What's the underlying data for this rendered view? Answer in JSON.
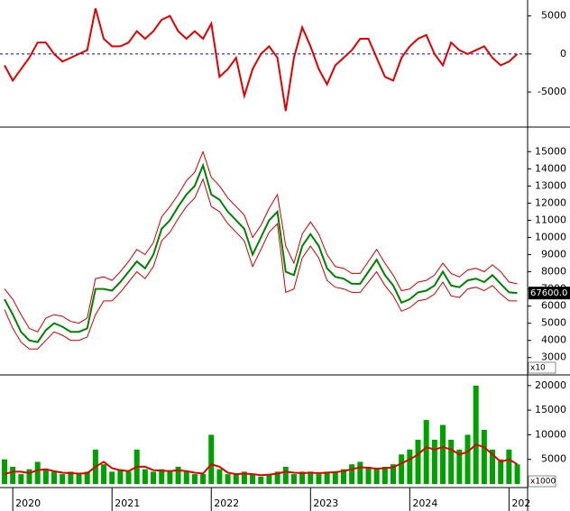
{
  "chart_data": [
    {
      "type": "line",
      "ylim": [
        -9500,
        7100
      ],
      "yticks": [
        5000,
        0,
        -5000
      ],
      "hline": 0,
      "series": [
        {
          "color": "#e00000",
          "values": [
            -1500,
            -3500,
            -2000,
            -500,
            1500,
            1500,
            0,
            -1000,
            -500,
            0,
            500,
            6000,
            2000,
            1000,
            1000,
            1500,
            3000,
            2000,
            3000,
            4500,
            5000,
            3000,
            2000,
            3000,
            2000,
            4000,
            -3000,
            -2000,
            -500,
            -5500,
            -2000,
            0,
            1000,
            -500,
            -7500,
            -500,
            3500,
            1000,
            -2000,
            -4000,
            -1500,
            -500,
            500,
            2000,
            2000,
            -500,
            -3000,
            -3500,
            -500,
            1000,
            2000,
            2500,
            0,
            -1500,
            1500,
            500,
            0,
            500,
            1000,
            -500,
            -1500,
            -1000,
            0
          ]
        }
      ]
    },
    {
      "type": "line",
      "ylim": [
        2040,
        16380
      ],
      "yticks": [
        3000,
        4000,
        5000,
        6000,
        7000,
        8000,
        9000,
        10000,
        11000,
        12000,
        13000,
        14000,
        15000
      ],
      "unit_label": "x10",
      "last_price_label": "67600.0",
      "series": [
        {
          "color": "#cc0000",
          "values": [
            7000,
            6400,
            5500,
            4700,
            4500,
            5300,
            5500,
            5400,
            5100,
            5000,
            5300,
            7600,
            7700,
            7500,
            8000,
            8600,
            9300,
            9000,
            9700,
            11200,
            11800,
            12500,
            13300,
            13800,
            15000,
            13500,
            13000,
            12300,
            11800,
            11300,
            10000,
            10700,
            11700,
            12500,
            9500,
            8500,
            10200,
            10900,
            10200,
            9000,
            8300,
            8200,
            7900,
            7900,
            8600,
            9300,
            8500,
            7800,
            6900,
            7000,
            7400,
            7500,
            7800,
            8500,
            7900,
            7700,
            8100,
            8200,
            8000,
            8400,
            8000,
            7400,
            7300
          ]
        },
        {
          "color": "#cc0000",
          "values": [
            5800,
            4700,
            3900,
            3500,
            3500,
            4000,
            4500,
            4300,
            4000,
            4000,
            4200,
            5500,
            6300,
            6300,
            6800,
            7400,
            8000,
            7600,
            8300,
            9800,
            10300,
            11100,
            11800,
            12300,
            13400,
            11800,
            11500,
            10800,
            10300,
            9800,
            8300,
            9300,
            10300,
            10800,
            6800,
            7000,
            8800,
            9500,
            8800,
            7500,
            7100,
            7000,
            6800,
            6800,
            7400,
            8000,
            7200,
            6600,
            5700,
            5900,
            6300,
            6400,
            6700,
            7400,
            6600,
            6500,
            7000,
            7100,
            6900,
            7200,
            6700,
            6300,
            6300
          ]
        },
        {
          "color": "#008000",
          "values": [
            6400,
            5500,
            4500,
            4000,
            3900,
            4600,
            5000,
            4800,
            4500,
            4500,
            4700,
            7000,
            7000,
            6900,
            7400,
            8000,
            8600,
            8200,
            9000,
            10500,
            11000,
            11800,
            12500,
            13000,
            14200,
            12500,
            12200,
            11500,
            11000,
            10500,
            9000,
            10000,
            11000,
            11500,
            8000,
            7800,
            9500,
            10200,
            9500,
            8200,
            7700,
            7600,
            7300,
            7300,
            8000,
            8700,
            7800,
            7200,
            6200,
            6400,
            6800,
            6900,
            7200,
            8000,
            7200,
            7100,
            7500,
            7600,
            7400,
            7800,
            7300,
            6800,
            6760
          ]
        }
      ]
    },
    {
      "type": "bar",
      "ylim": [
        -730,
        21800
      ],
      "yticks": [
        5000,
        10000,
        15000,
        20000
      ],
      "unit_label": "x1000",
      "categories": [
        null,
        "2020",
        null,
        null,
        null,
        null,
        null,
        null,
        null,
        null,
        null,
        null,
        null,
        "2021",
        null,
        null,
        null,
        null,
        null,
        null,
        null,
        null,
        null,
        null,
        null,
        "2022",
        null,
        null,
        null,
        null,
        null,
        null,
        null,
        null,
        null,
        null,
        null,
        "2023",
        null,
        null,
        null,
        null,
        null,
        null,
        null,
        null,
        null,
        null,
        null,
        "2024",
        null,
        null,
        null,
        null,
        null,
        null,
        null,
        null,
        null,
        null,
        null,
        "202",
        null
      ],
      "series": [
        {
          "type": "bar",
          "color": "#00a000",
          "values": [
            5000,
            3500,
            2000,
            3000,
            4500,
            3000,
            2500,
            2000,
            2500,
            2000,
            2500,
            7000,
            4000,
            2500,
            3000,
            2500,
            7000,
            3000,
            2500,
            3000,
            2500,
            3500,
            2500,
            2000,
            2000,
            10000,
            3000,
            2000,
            2000,
            2500,
            2000,
            1500,
            2000,
            2500,
            3500,
            2000,
            2500,
            2500,
            2000,
            2500,
            2500,
            3000,
            4000,
            4500,
            3500,
            3000,
            3500,
            4000,
            6000,
            7000,
            9000,
            13000,
            9000,
            12000,
            9000,
            7000,
            10000,
            20000,
            11000,
            7000,
            5000,
            7000,
            4000
          ]
        },
        {
          "type": "line",
          "color": "#e00000",
          "values": [
            2000,
            2500,
            2500,
            2200,
            2800,
            3000,
            2600,
            2300,
            2200,
            2100,
            2200,
            3500,
            4500,
            3200,
            2800,
            2600,
            3500,
            3500,
            2800,
            2700,
            2600,
            2800,
            2600,
            2300,
            2100,
            4000,
            3500,
            2300,
            2000,
            2100,
            2000,
            1800,
            1900,
            2100,
            2500,
            2300,
            2200,
            2300,
            2200,
            2300,
            2400,
            2600,
            3000,
            3400,
            3300,
            3100,
            3200,
            3400,
            4200,
            5000,
            6000,
            7500,
            7000,
            7500,
            7000,
            6000,
            6500,
            8000,
            7500,
            6000,
            4500,
            5000,
            4000
          ]
        }
      ]
    }
  ]
}
